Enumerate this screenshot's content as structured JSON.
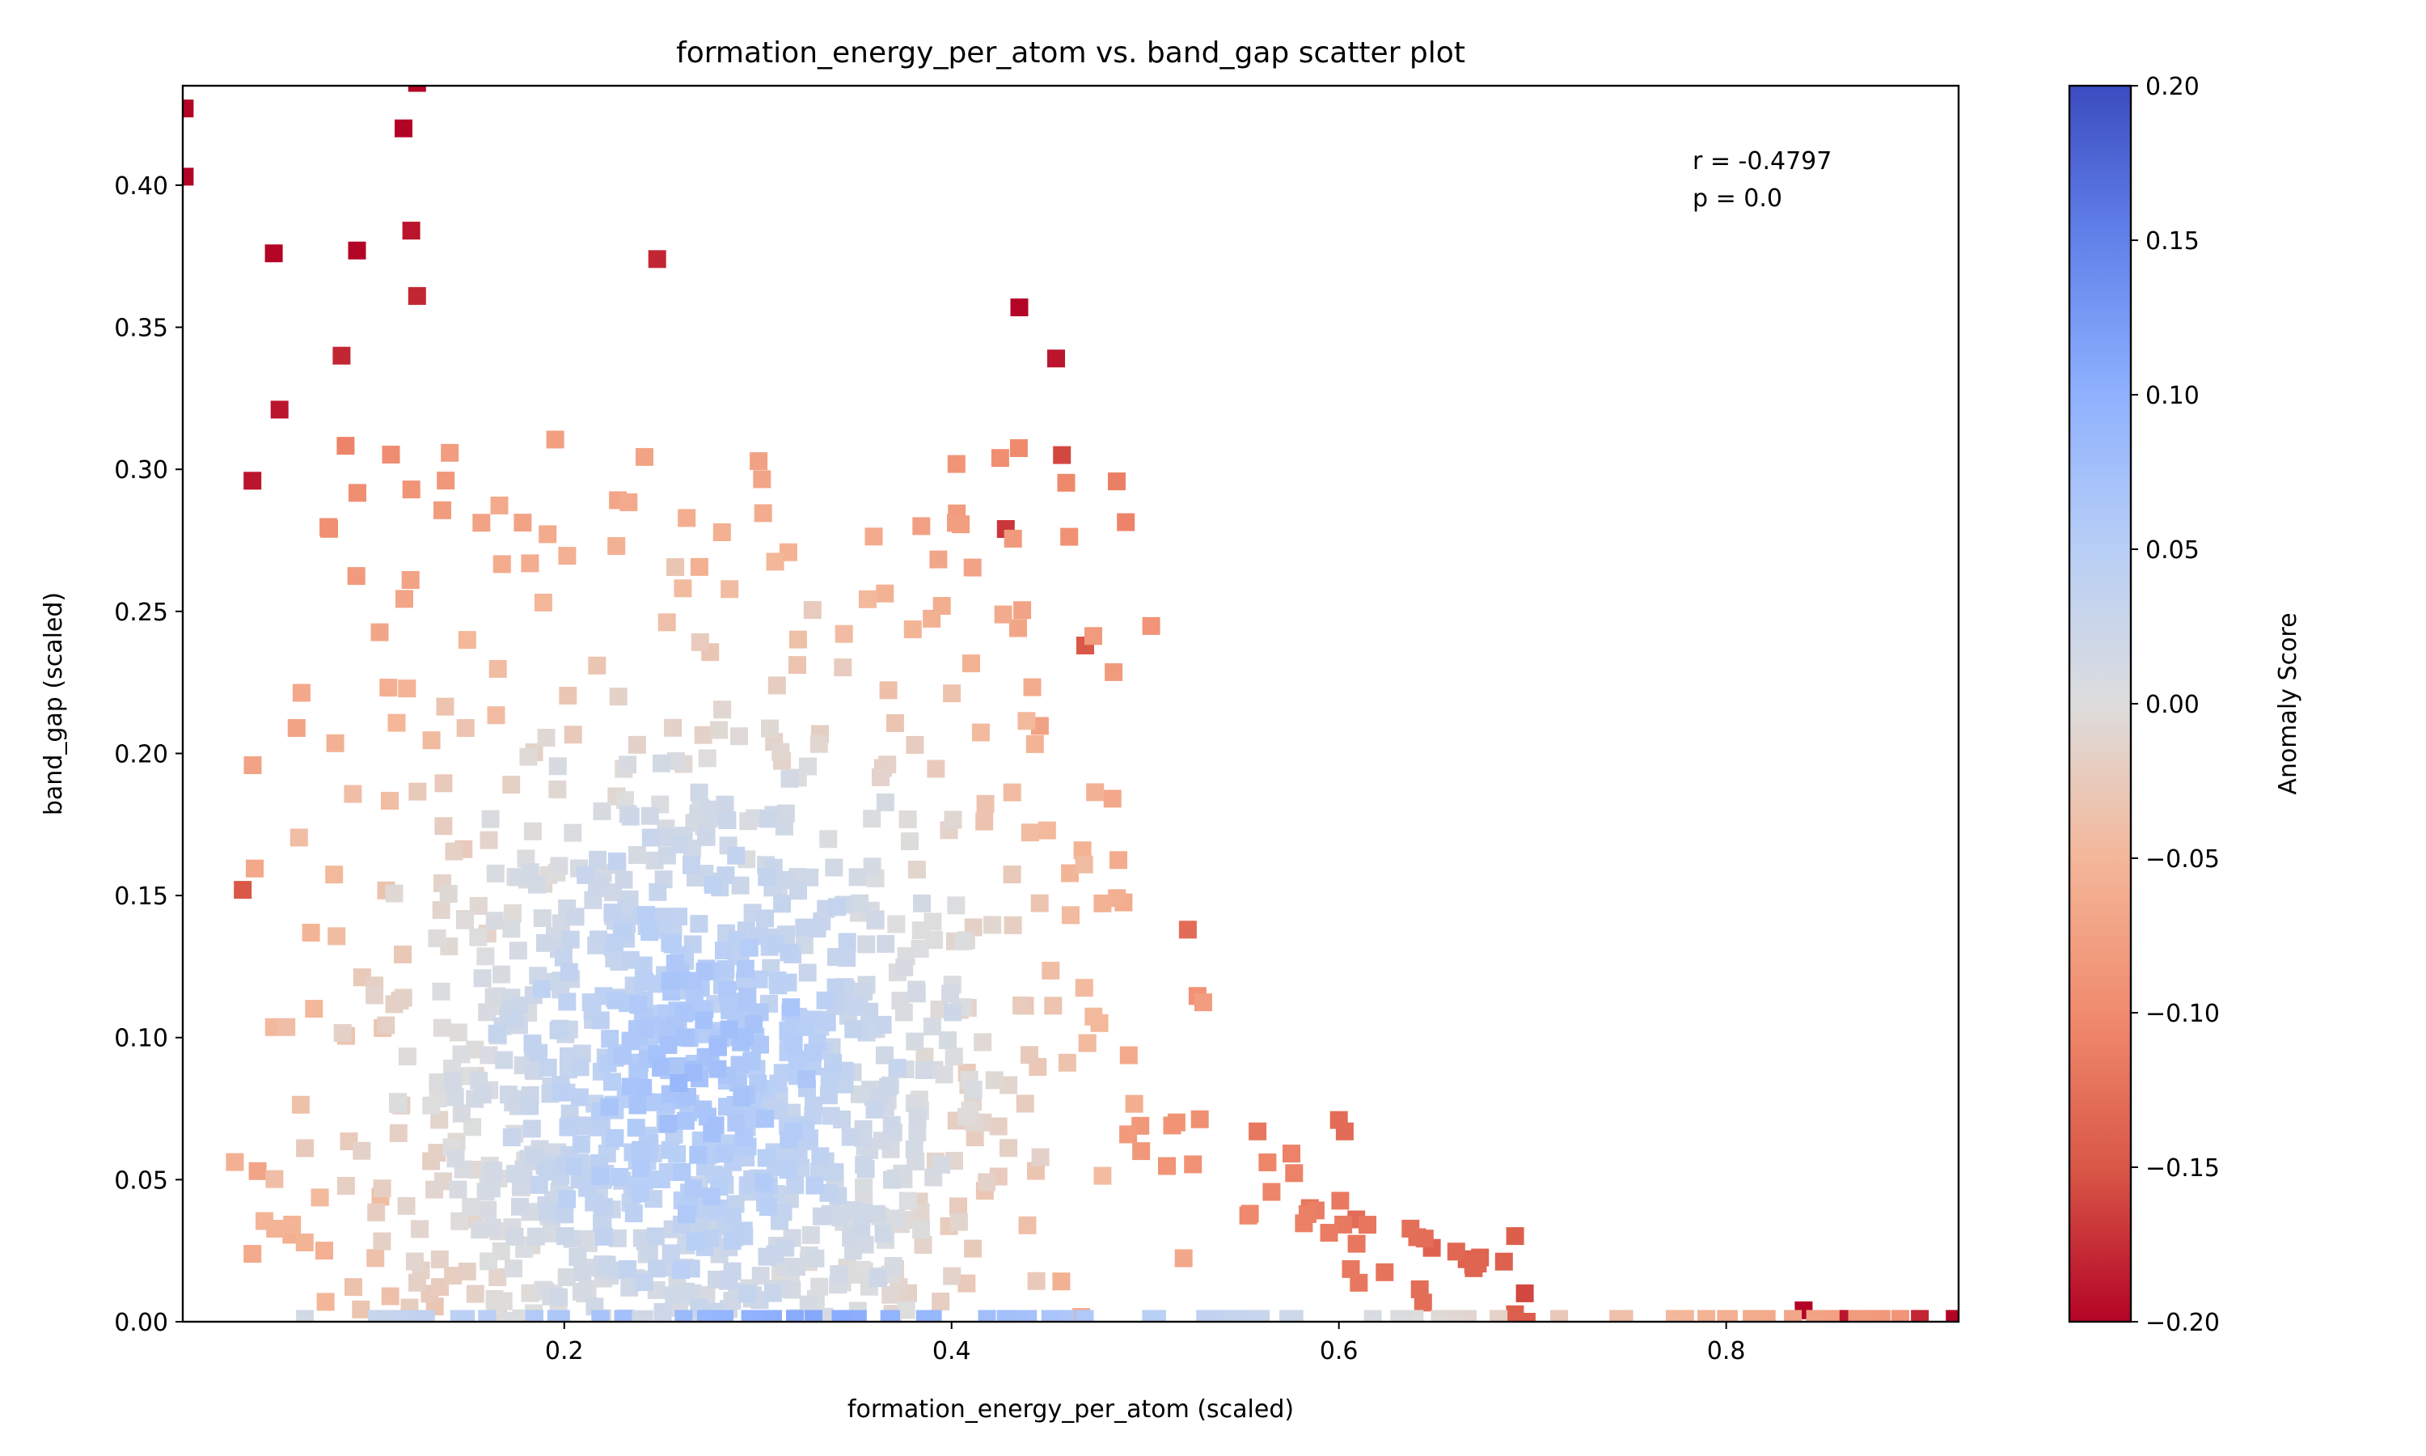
{
  "chart_data": {
    "type": "scatter",
    "title": "formation_energy_per_atom vs. band_gap scatter plot",
    "xlabel": "formation_energy_per_atom (scaled)",
    "ylabel": "band_gap (scaled)",
    "xlim": [
      0.003,
      0.92
    ],
    "ylim": [
      0.0,
      0.435
    ],
    "x_ticks": [
      0.2,
      0.4,
      0.6,
      0.8
    ],
    "x_tick_labels": [
      "0.2",
      "0.4",
      "0.6",
      "0.8"
    ],
    "y_ticks": [
      0.0,
      0.05,
      0.1,
      0.15,
      0.2,
      0.25,
      0.3,
      0.35,
      0.4
    ],
    "y_tick_labels": [
      "0.00",
      "0.05",
      "0.10",
      "0.15",
      "0.20",
      "0.25",
      "0.30",
      "0.35",
      "0.40"
    ],
    "grid": false,
    "legend": "none",
    "marker": "square",
    "annotation": {
      "r_text": "r = -0.4797",
      "p_text": "p = 0.0",
      "placement": "top-right"
    },
    "colorbar": {
      "label": "Anomaly Score",
      "colormap": "coolwarm",
      "range": [
        -0.2,
        0.2
      ],
      "ticks": [
        0.2,
        0.15,
        0.1,
        0.05,
        0.0,
        -0.05,
        -0.1,
        -0.15,
        -0.2
      ],
      "tick_labels": [
        "0.20",
        "0.15",
        "0.10",
        "0.05",
        "0.00",
        "−0.05",
        "−0.10",
        "−0.15",
        "−0.20"
      ]
    },
    "points_note": "Approximately 1500 points; the notable points and cluster envelopes are listed below.",
    "notable_points": [
      {
        "x": 0.004,
        "y": 0.427,
        "score": -0.2
      },
      {
        "x": 0.004,
        "y": 0.403,
        "score": -0.2
      },
      {
        "x": 0.05,
        "y": 0.376,
        "score": -0.2
      },
      {
        "x": 0.093,
        "y": 0.377,
        "score": -0.2
      },
      {
        "x": 0.117,
        "y": 0.42,
        "score": -0.2
      },
      {
        "x": 0.124,
        "y": 0.436,
        "score": -0.2
      },
      {
        "x": 0.121,
        "y": 0.384,
        "score": -0.19
      },
      {
        "x": 0.124,
        "y": 0.361,
        "score": -0.18
      },
      {
        "x": 0.085,
        "y": 0.34,
        "score": -0.18
      },
      {
        "x": 0.053,
        "y": 0.321,
        "score": -0.19
      },
      {
        "x": 0.039,
        "y": 0.296,
        "score": -0.19
      },
      {
        "x": 0.248,
        "y": 0.374,
        "score": -0.18
      },
      {
        "x": 0.435,
        "y": 0.357,
        "score": -0.2
      },
      {
        "x": 0.454,
        "y": 0.339,
        "score": -0.19
      },
      {
        "x": 0.457,
        "y": 0.305,
        "score": -0.16
      },
      {
        "x": 0.428,
        "y": 0.279,
        "score": -0.17
      },
      {
        "x": 0.469,
        "y": 0.238,
        "score": -0.15
      },
      {
        "x": 0.034,
        "y": 0.152,
        "score": -0.15
      },
      {
        "x": 0.522,
        "y": 0.138,
        "score": -0.13
      },
      {
        "x": 0.558,
        "y": 0.067,
        "score": -0.12
      },
      {
        "x": 0.6,
        "y": 0.071,
        "score": -0.13
      },
      {
        "x": 0.603,
        "y": 0.067,
        "score": -0.13
      },
      {
        "x": 0.585,
        "y": 0.04,
        "score": -0.12
      },
      {
        "x": 0.609,
        "y": 0.036,
        "score": -0.13
      },
      {
        "x": 0.648,
        "y": 0.026,
        "score": -0.14
      },
      {
        "x": 0.666,
        "y": 0.022,
        "score": -0.14
      },
      {
        "x": 0.696,
        "y": 0.01,
        "score": -0.16
      },
      {
        "x": 0.84,
        "y": 0.004,
        "score": -0.2
      },
      {
        "x": 0.86,
        "y": 0.001,
        "score": -0.19
      },
      {
        "x": 0.9,
        "y": 0.001,
        "score": -0.18
      },
      {
        "x": 0.918,
        "y": 0.001,
        "score": -0.2
      }
    ]
  }
}
